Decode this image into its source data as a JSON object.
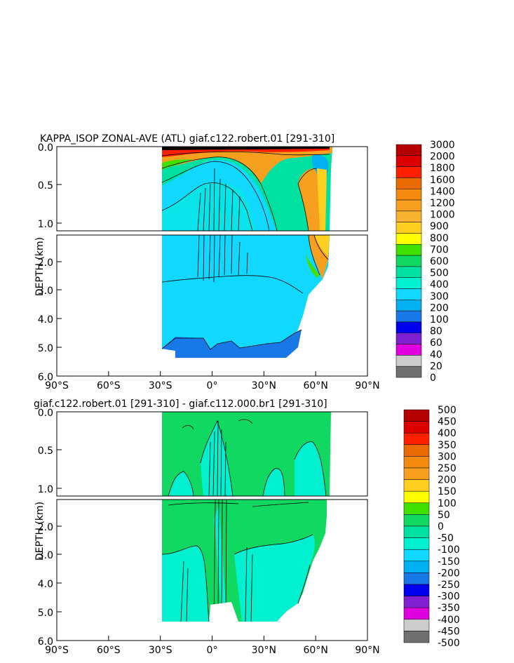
{
  "chart_data": [
    {
      "type": "heatmap",
      "title": "KAPPA_ISOP ZONAL-AVE (ATL) giaf.c122.robert.01 [291-310]",
      "xlabel": "",
      "ylabel": "DEPTH (km)",
      "x_ticks": [
        "90°S",
        "60°S",
        "30°S",
        "0°",
        "30°N",
        "60°N",
        "90°N"
      ],
      "x_tick_values": [
        -90,
        -60,
        -30,
        0,
        30,
        60,
        90
      ],
      "xlim": [
        -90,
        90
      ],
      "ylim": [
        6.0,
        0.0
      ],
      "y_ticks_upper": [
        "0.0",
        "0.5",
        "1.0"
      ],
      "y_tick_values_upper": [
        0.0,
        0.5,
        1.0
      ],
      "y_ticks_lower": [
        "2.0",
        "3.0",
        "4.0",
        "5.0",
        "6.0"
      ],
      "y_tick_values_lower": [
        2.0,
        3.0,
        4.0,
        5.0,
        6.0
      ],
      "colorbar": {
        "labels": [
          "3000",
          "2000",
          "1800",
          "1600",
          "1400",
          "1200",
          "1000",
          "900",
          "800",
          "700",
          "600",
          "500",
          "400",
          "300",
          "200",
          "100",
          "80",
          "60",
          "40",
          "20",
          "0"
        ],
        "colors": [
          "#b40000",
          "#dc0000",
          "#ff2000",
          "#e86a00",
          "#f58a10",
          "#f7a020",
          "#f8b430",
          "#ffd020",
          "#ffff00",
          "#40e000",
          "#10d860",
          "#00e0a0",
          "#00f0d0",
          "#10d8ff",
          "#00b0f0",
          "#1878e8",
          "#0000ee",
          "#8020d0",
          "#e000e0",
          "#cccccc",
          "#707070"
        ]
      }
    },
    {
      "type": "heatmap",
      "title": "giaf.c122.robert.01 [291-310] - giaf.c112.000.br1 [291-310]",
      "xlabel": "",
      "ylabel": "DEPTH (km)",
      "x_ticks": [
        "90°S",
        "60°S",
        "30°S",
        "0°",
        "30°N",
        "60°N",
        "90°N"
      ],
      "x_tick_values": [
        -90,
        -60,
        -30,
        0,
        30,
        60,
        90
      ],
      "xlim": [
        -90,
        90
      ],
      "ylim": [
        6.0,
        0.0
      ],
      "y_ticks_upper": [
        "0.0",
        "0.5",
        "1.0"
      ],
      "y_tick_values_upper": [
        0.0,
        0.5,
        1.0
      ],
      "y_ticks_lower": [
        "2.0",
        "3.0",
        "4.0",
        "5.0",
        "6.0"
      ],
      "y_tick_values_lower": [
        2.0,
        3.0,
        4.0,
        5.0,
        6.0
      ],
      "colorbar": {
        "labels": [
          "500",
          "450",
          "400",
          "350",
          "300",
          "250",
          "200",
          "150",
          "100",
          "50",
          "0",
          "-50",
          "-100",
          "-150",
          "-200",
          "-250",
          "-300",
          "-350",
          "-400",
          "-450",
          "-500"
        ],
        "colors": [
          "#b40000",
          "#dc0000",
          "#ff2000",
          "#e86a00",
          "#f58a10",
          "#f7a020",
          "#ffd020",
          "#ffff00",
          "#40e000",
          "#10d860",
          "#00e0a0",
          "#00f0d0",
          "#10d8ff",
          "#00b0f0",
          "#1878e8",
          "#0000ee",
          "#8020d0",
          "#e000e0",
          "#cccccc",
          "#707070"
        ]
      }
    }
  ]
}
